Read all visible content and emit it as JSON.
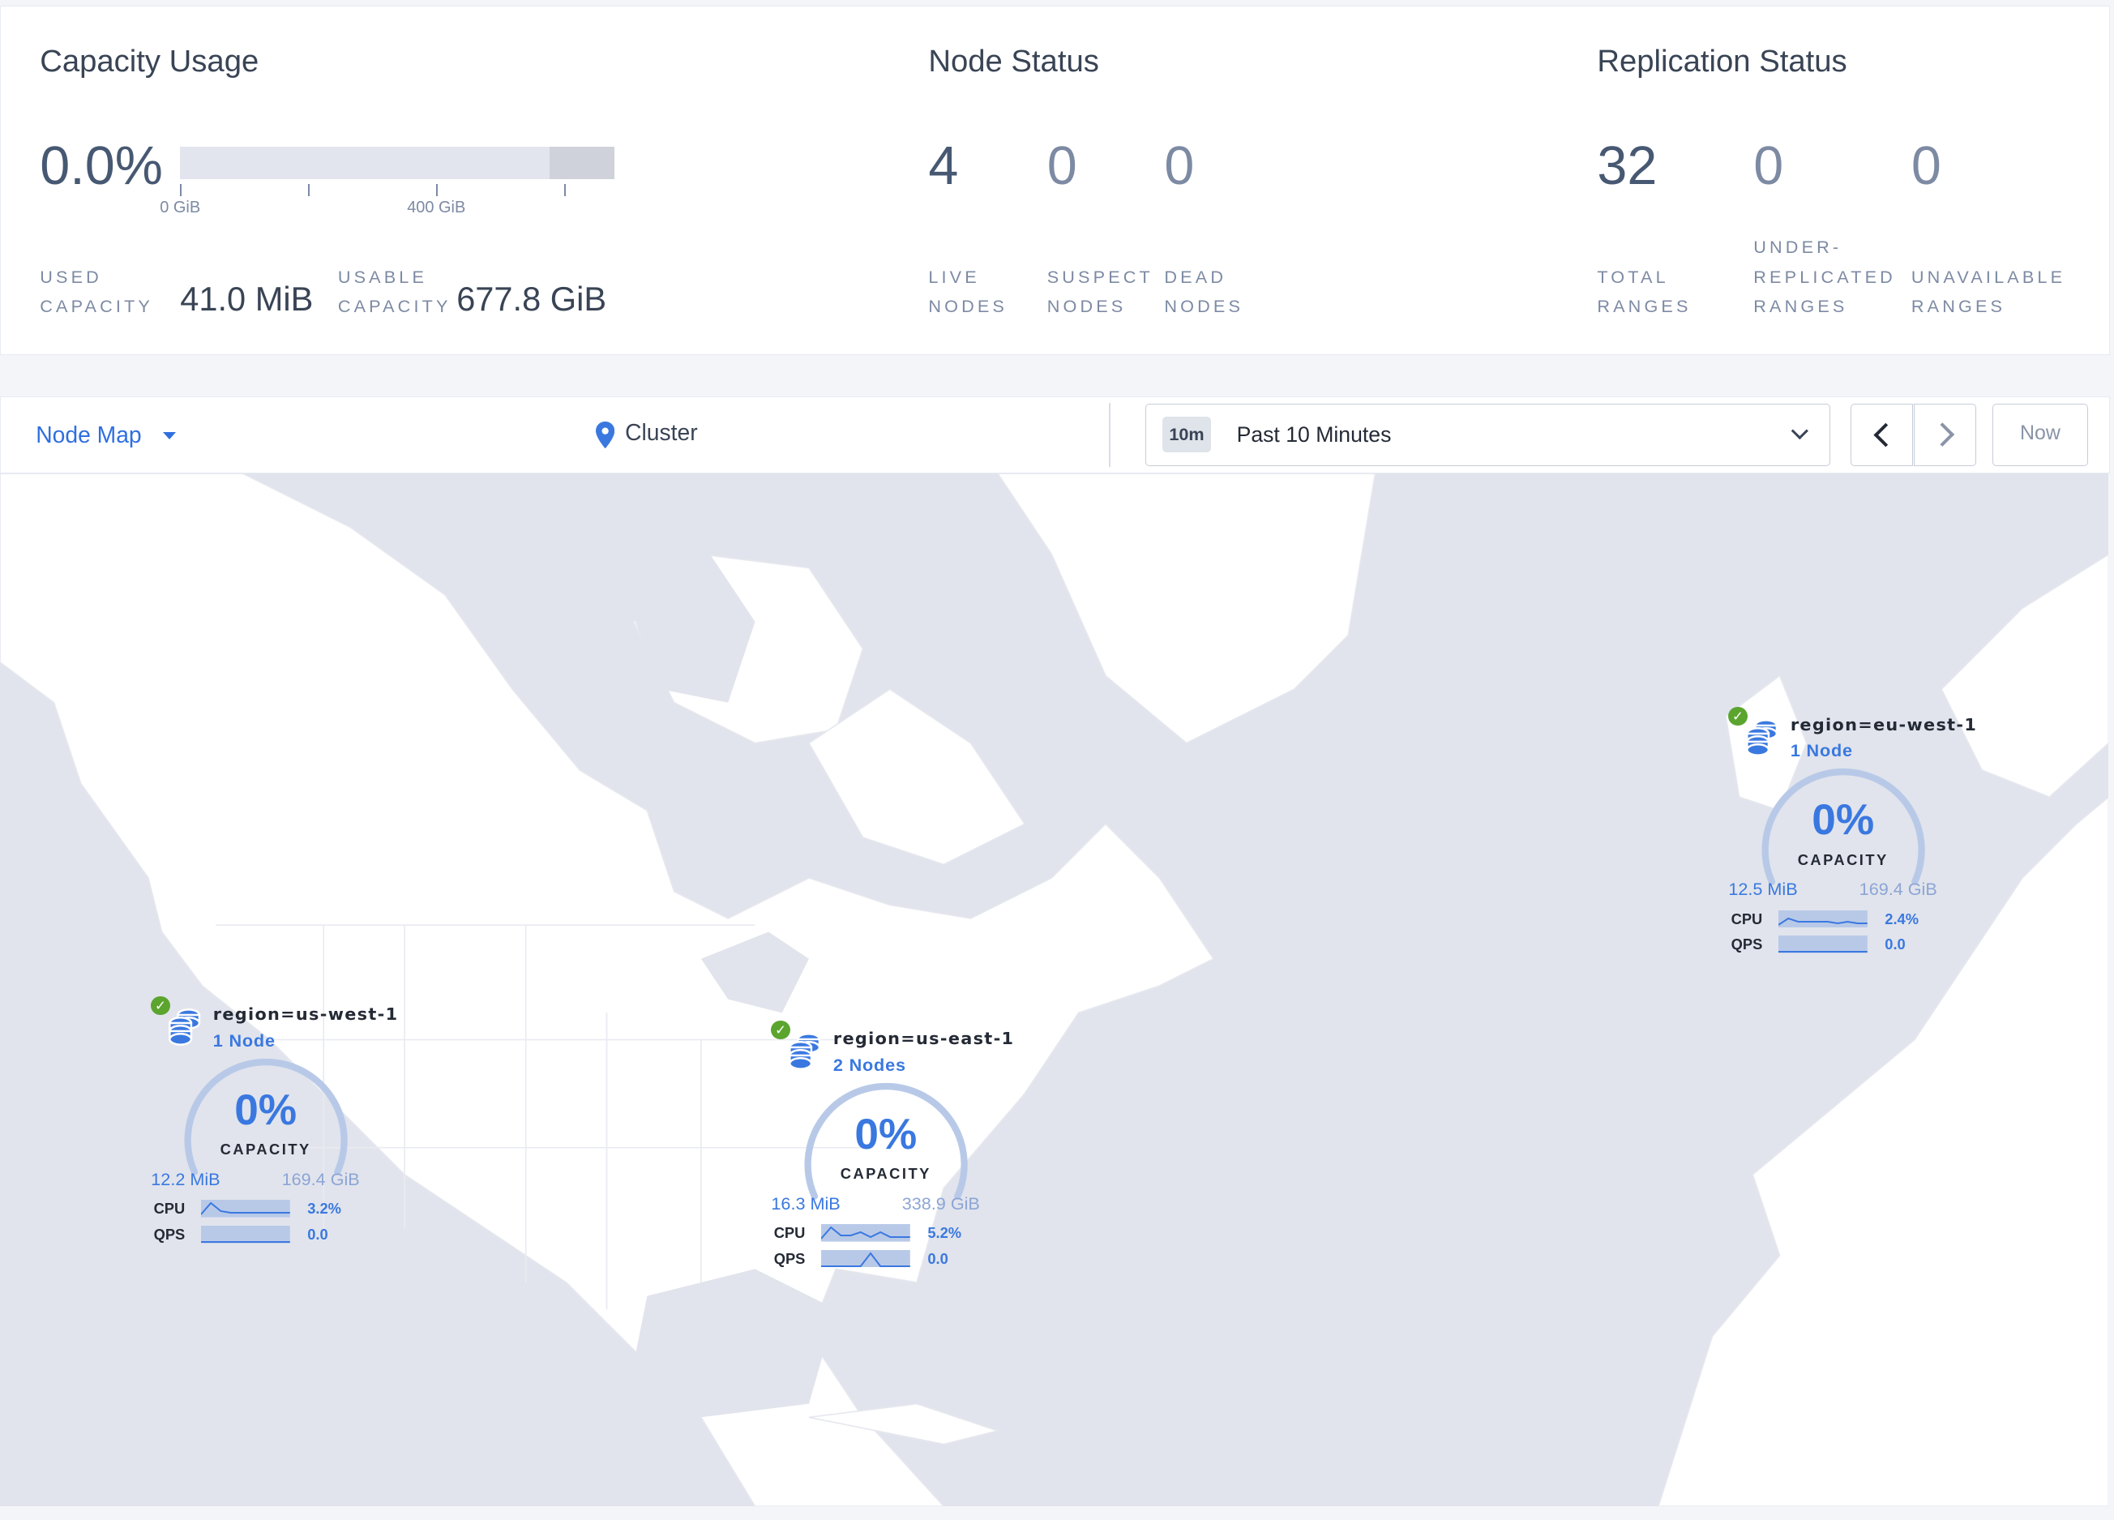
{
  "capacity_usage": {
    "title": "Capacity Usage",
    "percent": "0.0%",
    "bar_used_fraction": 0.0,
    "axis_ticks": [
      "0 GiB",
      "400 GiB"
    ],
    "used_label_1": "USED",
    "used_label_2": "CAPACITY",
    "used_value": "41.0 MiB",
    "usable_label_1": "USABLE",
    "usable_label_2": "CAPACITY",
    "usable_value": "677.8 GiB"
  },
  "node_status": {
    "title": "Node Status",
    "stats": [
      {
        "value": "4",
        "label1": "LIVE",
        "label2": "NODES"
      },
      {
        "value": "0",
        "label1": "SUSPECT",
        "label2": "NODES"
      },
      {
        "value": "0",
        "label1": "DEAD",
        "label2": "NODES"
      }
    ]
  },
  "replication_status": {
    "title": "Replication Status",
    "stats": [
      {
        "value": "32",
        "label0": "",
        "label1": "TOTAL",
        "label2": "RANGES"
      },
      {
        "value": "0",
        "label0": "UNDER-",
        "label1": "REPLICATED",
        "label2": "RANGES"
      },
      {
        "value": "0",
        "label0": "",
        "label1": "UNAVAILABLE",
        "label2": "RANGES"
      }
    ]
  },
  "toolbar": {
    "view_label": "Node Map",
    "cluster_label": "Cluster",
    "time_badge": "10m",
    "time_range": "Past 10 Minutes",
    "now_label": "Now"
  },
  "nodes": [
    {
      "region": "region=us-west-1",
      "count": "1 Node",
      "percent": "0%",
      "capacity_label": "CAPACITY",
      "used": "12.2 MiB",
      "total": "169.4 GiB",
      "cpu_label": "CPU",
      "cpu": "3.2%",
      "qps_label": "QPS",
      "qps": "0.0",
      "cpu_spark": [
        1,
        8,
        3,
        2,
        2,
        2,
        2,
        2,
        2,
        2
      ],
      "qps_spark": [
        0,
        0,
        0,
        0,
        0,
        0,
        0,
        0,
        0,
        0
      ]
    },
    {
      "region": "region=us-east-1",
      "count": "2 Nodes",
      "percent": "0%",
      "capacity_label": "CAPACITY",
      "used": "16.3 MiB",
      "total": "338.9 GiB",
      "cpu_label": "CPU",
      "cpu": "5.2%",
      "qps_label": "QPS",
      "qps": "0.0",
      "cpu_spark": [
        1,
        8,
        3,
        3,
        5,
        2,
        5,
        2,
        2,
        2
      ],
      "qps_spark": [
        0,
        0,
        0,
        0,
        0,
        8,
        0,
        0,
        0,
        0
      ]
    },
    {
      "region": "region=eu-west-1",
      "count": "1 Node",
      "percent": "0%",
      "capacity_label": "CAPACITY",
      "used": "12.5 MiB",
      "total": "169.4 GiB",
      "cpu_label": "CPU",
      "cpu": "2.4%",
      "qps_label": "QPS",
      "qps": "0.0",
      "cpu_spark": [
        1,
        5,
        3,
        3,
        3,
        3,
        2,
        3,
        2,
        2
      ],
      "qps_spark": [
        0,
        0,
        0,
        0,
        0,
        0,
        0,
        0,
        0,
        0
      ]
    }
  ],
  "colors": {
    "accent": "#3a78e0",
    "ok": "#5ba52f",
    "water": "#e1e4ec",
    "land": "#ffffff"
  }
}
